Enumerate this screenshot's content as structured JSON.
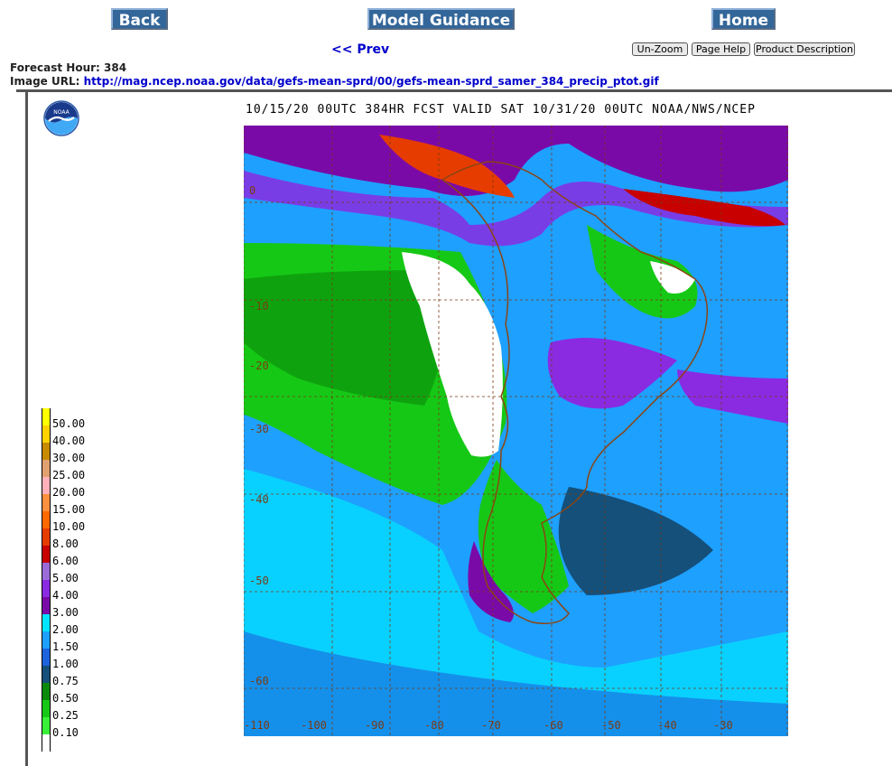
{
  "nav": {
    "back": "Back",
    "model_guidance": "Model Guidance",
    "home": "Home",
    "prev": "<< Prev",
    "unzoom": "Un-Zoom",
    "page_help": "Page Help",
    "product_description": "Product Description"
  },
  "info": {
    "forecast_hour": "Forecast Hour: 384",
    "image_url_label": "Image URL:",
    "image_url": "http://mag.ncep.noaa.gov/data/gefs-mean-sprd/00/gefs-mean-sprd_samer_384_precip_ptot.gif"
  },
  "map": {
    "title": "10/15/20 00UTC 384HR FCST VALID SAT 10/31/20 00UTC NOAA/NWS/NCEP",
    "lat_labels": [
      "0",
      "-10",
      "-20",
      "-30",
      "-40",
      "-50",
      "-60"
    ],
    "lon_labels": [
      "-110",
      "-100",
      "-90",
      "-80",
      "-70",
      "-60",
      "-50",
      "-40",
      "-30"
    ],
    "logo_text": "NOAA"
  },
  "legend": {
    "items": [
      {
        "label": "50.00",
        "color": "#ffff00"
      },
      {
        "label": "40.00",
        "color": "#ffd200"
      },
      {
        "label": "30.00",
        "color": "#c88a00"
      },
      {
        "label": "25.00",
        "color": "#e0a070"
      },
      {
        "label": "20.00",
        "color": "#ffb0b8"
      },
      {
        "label": "15.00",
        "color": "#ff9040"
      },
      {
        "label": "10.00",
        "color": "#ff6a00"
      },
      {
        "label": "8.00",
        "color": "#e63c00"
      },
      {
        "label": "6.00",
        "color": "#c80000"
      },
      {
        "label": "5.00",
        "color": "#9b6cd8"
      },
      {
        "label": "4.00",
        "color": "#8a2be2"
      },
      {
        "label": "3.00",
        "color": "#7a0aa8"
      },
      {
        "label": "2.00",
        "color": "#00e5ff"
      },
      {
        "label": "1.50",
        "color": "#1ea0ff"
      },
      {
        "label": "1.00",
        "color": "#1e64dc"
      },
      {
        "label": "0.75",
        "color": "#14507a"
      },
      {
        "label": "0.50",
        "color": "#0a8a0a"
      },
      {
        "label": "0.25",
        "color": "#16c816"
      },
      {
        "label": "0.10",
        "color": "#38f038"
      },
      {
        "label": "",
        "color": "#ffffff"
      }
    ]
  }
}
